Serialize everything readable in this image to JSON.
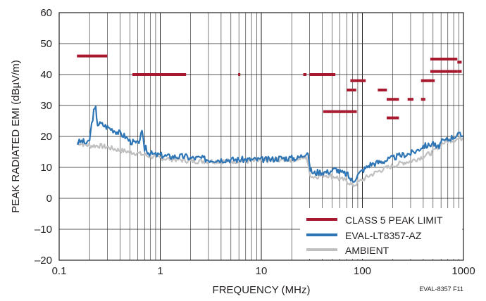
{
  "chart_data": {
    "type": "line",
    "title": "",
    "xlabel": "FREQUENCY (MHz)",
    "ylabel": "PEAK RADIATED EMI (dBµV/m)",
    "x_scale": "log",
    "xlim": [
      0.1,
      1000
    ],
    "ylim": [
      -20,
      60
    ],
    "x_ticks": [
      "0.1",
      "1",
      "10",
      "100",
      "1000"
    ],
    "y_ticks": [
      "60",
      "50",
      "40",
      "30",
      "20",
      "10",
      "0",
      "–10",
      "–20"
    ],
    "grid": true,
    "legend_position": "bottom-right",
    "figure_id": "EVAL-8357 F11",
    "colors": {
      "limit": "#a6192e",
      "eval": "#2e75b6",
      "ambient": "#c0c0c0",
      "grid": "#231f20"
    },
    "limit_segments": [
      {
        "x": [
          0.15,
          0.3
        ],
        "y": 46
      },
      {
        "x": [
          0.53,
          1.8
        ],
        "y": 40
      },
      {
        "x": [
          5.9,
          6.2
        ],
        "y": 40
      },
      {
        "x": [
          26,
          28
        ],
        "y": 40
      },
      {
        "x": [
          30,
          54
        ],
        "y": 40
      },
      {
        "x": [
          41,
          88
        ],
        "y": 28
      },
      {
        "x": [
          70,
          87
        ],
        "y": 35
      },
      {
        "x": [
          76,
          108
        ],
        "y": 38
      },
      {
        "x": [
          142,
          175
        ],
        "y": 35
      },
      {
        "x": [
          174,
          230
        ],
        "y": 32
      },
      {
        "x": [
          174,
          230
        ],
        "y": 26
      },
      {
        "x": [
          280,
          320
        ],
        "y": 32
      },
      {
        "x": [
          380,
          420
        ],
        "y": 32
      },
      {
        "x": [
          380,
          520
        ],
        "y": 38
      },
      {
        "x": [
          470,
          870
        ],
        "y": 45
      },
      {
        "x": [
          470,
          870
        ],
        "y": 41
      },
      {
        "x": [
          870,
          960
        ],
        "y": 44
      },
      {
        "x": [
          870,
          960
        ],
        "y": 41
      }
    ],
    "series": [
      {
        "name": "EVAL-LT8357-AZ",
        "x": [
          0.15,
          0.17,
          0.19,
          0.2,
          0.21,
          0.22,
          0.23,
          0.24,
          0.26,
          0.28,
          0.3,
          0.35,
          0.4,
          0.45,
          0.5,
          0.55,
          0.6,
          0.63,
          0.66,
          0.7,
          0.72,
          0.75,
          0.8,
          0.9,
          1.0,
          1.2,
          1.5,
          1.8,
          2.0,
          2.5,
          3,
          4,
          5,
          6,
          7,
          8,
          10,
          12,
          15,
          18,
          20,
          23,
          26,
          28,
          29,
          30,
          31,
          33,
          36,
          40,
          45,
          50,
          55,
          60,
          65,
          70,
          75,
          80,
          85,
          90,
          100,
          110,
          120,
          140,
          160,
          180,
          200,
          220,
          250,
          300,
          350,
          400,
          450,
          500,
          550,
          600,
          700,
          800,
          900,
          1000
        ],
        "y": [
          18,
          18.5,
          17.5,
          19,
          24,
          28,
          29,
          24,
          24,
          23.5,
          23,
          22,
          21,
          20,
          18.5,
          18,
          17.5,
          19.5,
          21,
          16,
          17,
          15,
          14.5,
          14,
          14,
          13.5,
          13.5,
          13.5,
          13,
          13,
          12.5,
          12.5,
          12.5,
          12.5,
          12.5,
          12.5,
          12.5,
          12.5,
          13,
          13,
          13,
          13,
          14,
          15,
          15,
          10,
          9,
          8,
          8.5,
          8.5,
          8.5,
          9,
          9.5,
          8.5,
          8,
          8,
          6.5,
          5.5,
          6.5,
          7.5,
          9,
          10,
          11,
          11.5,
          12,
          12.5,
          13,
          13.5,
          14,
          14.5,
          15.5,
          17,
          17,
          18,
          16,
          18,
          19,
          20,
          20.5,
          20
        ]
      },
      {
        "name": "AMBIENT",
        "x": [
          0.15,
          0.2,
          0.25,
          0.3,
          0.4,
          0.5,
          0.6,
          0.7,
          0.8,
          1.0,
          1.5,
          2,
          3,
          5,
          7,
          10,
          15,
          20,
          26,
          28,
          30,
          32,
          35,
          40,
          45,
          50,
          55,
          60,
          65,
          70,
          75,
          80,
          85,
          90,
          100,
          120,
          150,
          180,
          200,
          250,
          300,
          400,
          500,
          600,
          700,
          800,
          1000
        ],
        "y": [
          18,
          17,
          17,
          16.5,
          15.5,
          15,
          14.5,
          14,
          13.5,
          13,
          12.5,
          12,
          12,
          12,
          12,
          12,
          12.5,
          12.5,
          13,
          13.5,
          8,
          7,
          7,
          7.5,
          7.5,
          7,
          7,
          6,
          6,
          5.5,
          5,
          4,
          4.5,
          5,
          6,
          7.5,
          9,
          10,
          10.5,
          11.5,
          12,
          13.5,
          15,
          17.5,
          18.5,
          19,
          19.5
        ]
      }
    ],
    "legend": [
      {
        "key": "limit",
        "label": "CLASS 5 PEAK LIMIT"
      },
      {
        "key": "eval",
        "label": "EVAL-LT8357-AZ"
      },
      {
        "key": "ambient",
        "label": "AMBIENT"
      }
    ]
  }
}
